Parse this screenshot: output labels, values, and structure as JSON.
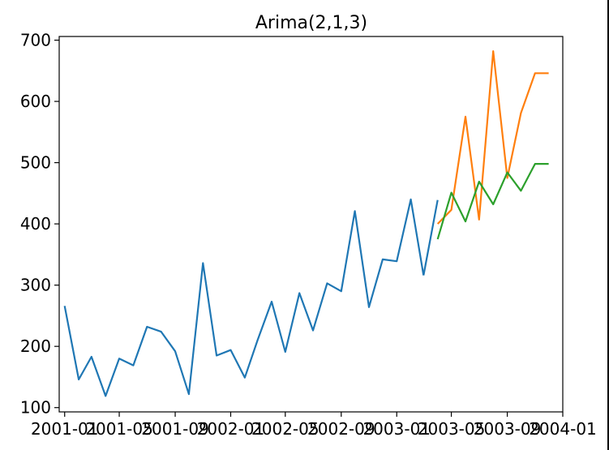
{
  "chart_data": {
    "type": "line",
    "title": "Arima(2,1,3)",
    "xlabel": "",
    "ylabel": "",
    "x_ticks": [
      "2001-01",
      "2001-05",
      "2001-09",
      "2002-01",
      "2002-05",
      "2002-09",
      "2003-01",
      "2003-05",
      "2003-09",
      "2004-01"
    ],
    "y_ticks": [
      100,
      200,
      300,
      400,
      500,
      600,
      700
    ],
    "ylim": [
      93,
      706
    ],
    "xlim": [
      "2000-12-20",
      "2004-01-01"
    ],
    "grid": false,
    "legend": "none",
    "series": [
      {
        "color": "#1f77b4",
        "x": [
          "2001-01",
          "2001-02",
          "2001-03",
          "2001-04",
          "2001-05",
          "2001-06",
          "2001-07",
          "2001-08",
          "2001-09",
          "2001-10",
          "2001-11",
          "2001-12",
          "2002-01",
          "2002-02",
          "2002-03",
          "2002-04",
          "2002-05",
          "2002-06",
          "2002-07",
          "2002-08",
          "2002-09",
          "2002-10",
          "2002-11",
          "2002-12",
          "2003-01",
          "2003-02",
          "2003-03"
        ],
        "values": [
          266,
          146,
          183,
          119,
          180,
          169,
          232,
          224,
          192,
          122,
          336,
          185,
          194,
          149,
          210,
          273,
          191,
          287,
          226,
          303,
          290,
          421,
          264,
          342,
          339,
          440,
          316
        ]
      },
      {
        "color": "#1f77b4",
        "x": [
          "2003-03",
          "2003-04"
        ],
        "values": [
          316,
          439
        ]
      },
      {
        "color": "#ff7f0e",
        "x": [
          "2003-04",
          "2003-05",
          "2003-06",
          "2003-07",
          "2003-08",
          "2003-09",
          "2003-10",
          "2003-11",
          "2003-12"
        ],
        "values": [
          400,
          423,
          575,
          407,
          682,
          475,
          581,
          646,
          646
        ]
      },
      {
        "color": "#2ca02c",
        "x": [
          "2003-04",
          "2003-05",
          "2003-06",
          "2003-07",
          "2003-08",
          "2003-09",
          "2003-10",
          "2003-11",
          "2003-12"
        ],
        "values": [
          375,
          451,
          404,
          469,
          432,
          484,
          454,
          498,
          498
        ]
      }
    ]
  }
}
